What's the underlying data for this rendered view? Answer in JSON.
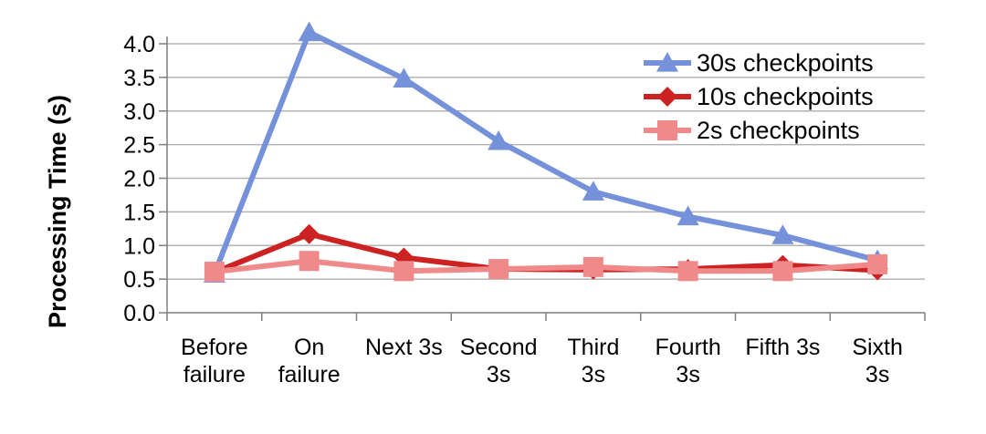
{
  "chart_data": {
    "type": "line",
    "title": "",
    "xlabel": "",
    "ylabel": "Processing Time (s)",
    "ylim": [
      0,
      4.0
    ],
    "yticks": [
      "0.0",
      "0.5",
      "1.0",
      "1.5",
      "2.0",
      "2.5",
      "3.0",
      "3.5",
      "4.0"
    ],
    "grid": true,
    "legend_position": "top-right",
    "categories": [
      [
        "Before",
        "failure"
      ],
      [
        "On",
        "failure"
      ],
      [
        "Next 3s"
      ],
      [
        "Second",
        "3s"
      ],
      [
        "Third",
        "3s"
      ],
      [
        "Fourth",
        "3s"
      ],
      [
        "Fifth 3s"
      ],
      [
        "Sixth",
        "3s"
      ]
    ],
    "series": [
      {
        "name": "30s checkpoints",
        "color": "#7591d9",
        "marker": "triangle",
        "values": [
          0.58,
          4.17,
          3.48,
          2.55,
          1.8,
          1.43,
          1.15,
          0.78
        ]
      },
      {
        "name": "10s checkpoints",
        "color": "#cc2222",
        "marker": "diamond",
        "values": [
          0.6,
          1.17,
          0.82,
          0.65,
          0.64,
          0.65,
          0.71,
          0.63
        ]
      },
      {
        "name": "2s checkpoints",
        "color": "#f08a8a",
        "marker": "square",
        "values": [
          0.61,
          0.77,
          0.62,
          0.65,
          0.68,
          0.62,
          0.62,
          0.72
        ]
      }
    ]
  }
}
